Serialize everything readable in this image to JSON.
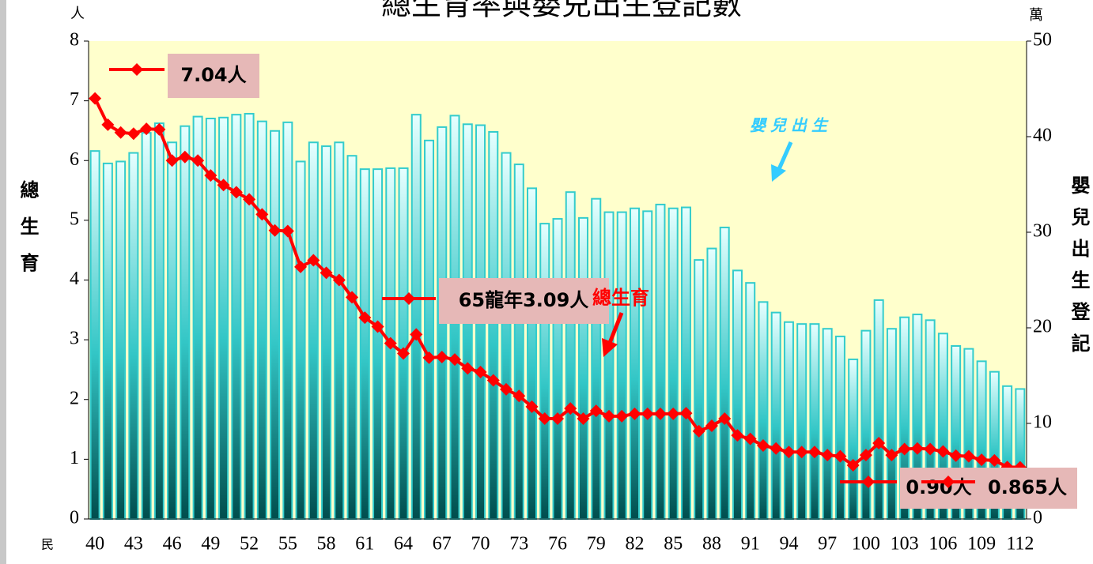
{
  "chart_data": {
    "type": "combo",
    "title": "總生育率與嬰兒出生登記數",
    "ylabel": "總生育",
    "y2label": "嬰兒出生登記",
    "y_unit": "人",
    "y2_unit": "萬",
    "x_unit": "民",
    "categories": [
      40,
      null,
      null,
      43,
      null,
      null,
      46,
      null,
      null,
      49,
      null,
      null,
      52,
      null,
      null,
      55,
      null,
      null,
      58,
      null,
      null,
      61,
      null,
      null,
      64,
      null,
      null,
      67,
      null,
      null,
      70,
      null,
      null,
      73,
      null,
      null,
      76,
      null,
      null,
      79,
      null,
      null,
      82,
      null,
      null,
      85,
      null,
      null,
      88,
      null,
      null,
      91,
      null,
      null,
      94,
      null,
      null,
      97,
      null,
      null,
      100,
      null,
      null,
      103,
      null,
      null,
      106,
      null,
      null,
      109,
      null,
      null,
      112
    ],
    "series": [
      {
        "type": "bar",
        "axis": "y2",
        "color": "#33cccc",
        "values": [
          38.5,
          37.2,
          37.4,
          38.3,
          40.4,
          41.4,
          39.4,
          41.1,
          42.1,
          41.9,
          42.0,
          42.3,
          42.4,
          41.6,
          40.6,
          41.5,
          37.4,
          39.4,
          39.0,
          39.4,
          38.0,
          36.6,
          36.6,
          36.7,
          36.7,
          42.3,
          39.6,
          41.0,
          42.2,
          41.3,
          41.2,
          40.5,
          38.3,
          37.1,
          34.6,
          30.9,
          31.4,
          34.2,
          31.5,
          33.5,
          32.1,
          32.1,
          32.5,
          32.2,
          32.9,
          32.5,
          32.6,
          27.1,
          28.3,
          30.5,
          26.0,
          24.7,
          22.7,
          21.6,
          20.6,
          20.4,
          20.4,
          19.9,
          19.1,
          16.7,
          19.7,
          22.9,
          19.9,
          21.1,
          21.4,
          20.8,
          19.4,
          18.1,
          17.8,
          16.5,
          15.4,
          13.9,
          13.6
        ]
      },
      {
        "type": "line",
        "color": "#ff0000",
        "values": [
          7.04,
          6.6,
          6.47,
          6.45,
          6.53,
          6.52,
          6.0,
          6.06,
          6.0,
          5.75,
          5.59,
          5.47,
          5.35,
          5.1,
          4.83,
          4.82,
          4.22,
          4.33,
          4.12,
          4.0,
          3.71,
          3.37,
          3.22,
          2.94,
          2.77,
          3.09,
          2.7,
          2.71,
          2.67,
          2.52,
          2.46,
          2.32,
          2.17,
          2.06,
          1.88,
          1.68,
          1.68,
          1.85,
          1.68,
          1.81,
          1.72,
          1.72,
          1.76,
          1.76,
          1.76,
          1.76,
          1.77,
          1.47,
          1.56,
          1.68,
          1.4,
          1.34,
          1.23,
          1.18,
          1.12,
          1.12,
          1.12,
          1.07,
          1.05,
          0.9,
          1.07,
          1.27,
          1.07,
          1.17,
          1.18,
          1.17,
          1.13,
          1.06,
          1.05,
          0.99,
          0.98,
          0.87,
          0.865
        ]
      }
    ],
    "ylim": [
      0,
      8
    ],
    "yticks": [
      0,
      1,
      2,
      3,
      4,
      5,
      6,
      7,
      8
    ],
    "y2lim": [
      0,
      50
    ],
    "y2ticks": [
      0,
      10,
      20,
      30,
      40,
      50
    ],
    "annotations": [
      "7.04人",
      "65龍年3.09人",
      "0.90人",
      "0.865人",
      "嬰兒出生",
      "總生育"
    ]
  }
}
